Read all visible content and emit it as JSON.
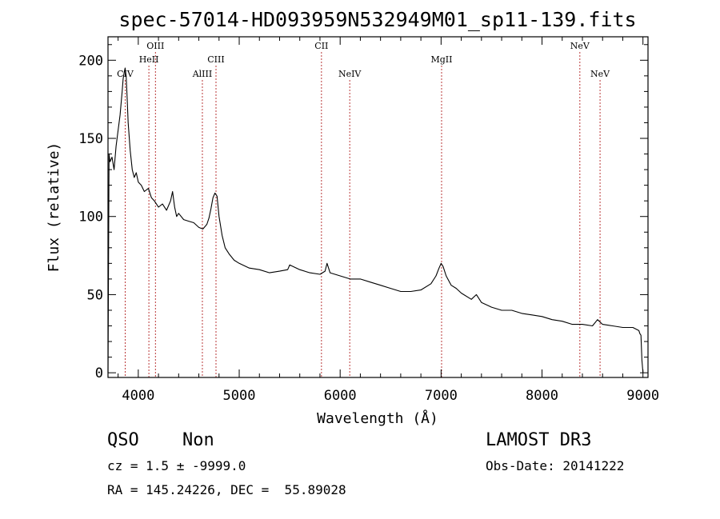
{
  "chart_data": {
    "type": "line",
    "title": "spec-57014-HD093959N532949M01_sp11-139.fits",
    "xlabel": "Wavelength (Å)",
    "ylabel": "Flux (relative)",
    "xlim": [
      3700,
      9050
    ],
    "ylim": [
      -3,
      215
    ],
    "xticks": [
      4000,
      5000,
      6000,
      7000,
      8000,
      9000
    ],
    "yticks": [
      0,
      50,
      100,
      150,
      200
    ],
    "grid": false,
    "line_color": "#000000",
    "marker_color": "#b22222",
    "spectral_lines": [
      {
        "name": "CIV",
        "wavelength": 3870,
        "row": "low"
      },
      {
        "name": "HeII",
        "wavelength": 4105,
        "row": "mid"
      },
      {
        "name": "OIII",
        "wavelength": 4170,
        "row": "high"
      },
      {
        "name": "AlIII",
        "wavelength": 4635,
        "row": "low"
      },
      {
        "name": "CIII",
        "wavelength": 4770,
        "row": "mid"
      },
      {
        "name": "CII",
        "wavelength": 5815,
        "row": "high"
      },
      {
        "name": "NeIV",
        "wavelength": 6095,
        "row": "low"
      },
      {
        "name": "MgII",
        "wavelength": 7005,
        "row": "mid"
      },
      {
        "name": "NeV",
        "wavelength": 8375,
        "row": "high"
      },
      {
        "name": "NeV",
        "wavelength": 8575,
        "row": "low"
      }
    ],
    "series": [
      {
        "x": [
          3700,
          3710,
          3720,
          3740,
          3760,
          3780,
          3800,
          3820,
          3840,
          3850,
          3860,
          3870,
          3880,
          3890,
          3900,
          3920,
          3940,
          3960,
          3980,
          4000,
          4030,
          4060,
          4100,
          4130,
          4160,
          4200,
          4240,
          4280,
          4320,
          4340,
          4360,
          4380,
          4400,
          4450,
          4500,
          4550,
          4600,
          4640,
          4680,
          4700,
          4720,
          4740,
          4760,
          4780,
          4800,
          4830,
          4860,
          4900,
          4950,
          5000,
          5100,
          5200,
          5300,
          5400,
          5480,
          5500,
          5600,
          5700,
          5800,
          5850,
          5870,
          5900,
          6000,
          6100,
          6200,
          6300,
          6400,
          6500,
          6600,
          6700,
          6800,
          6900,
          6950,
          6980,
          7000,
          7020,
          7050,
          7100,
          7150,
          7200,
          7300,
          7350,
          7400,
          7500,
          7600,
          7700,
          7800,
          7900,
          8000,
          8100,
          8200,
          8300,
          8400,
          8500,
          8550,
          8600,
          8700,
          8800,
          8900,
          8960,
          8970,
          8980,
          8990,
          9000
        ],
        "y": [
          0,
          140,
          135,
          138,
          130,
          145,
          155,
          165,
          180,
          188,
          192,
          195,
          190,
          175,
          160,
          142,
          130,
          125,
          128,
          122,
          120,
          116,
          118,
          112,
          110,
          106,
          108,
          104,
          110,
          116,
          106,
          100,
          102,
          98,
          97,
          96,
          93,
          92,
          95,
          99,
          105,
          112,
          115,
          113,
          100,
          88,
          80,
          76,
          72,
          70,
          67,
          66,
          64,
          65,
          66,
          69,
          66,
          64,
          63,
          65,
          70,
          64,
          62,
          60,
          60,
          58,
          56,
          54,
          52,
          52,
          53,
          57,
          62,
          67,
          70,
          68,
          62,
          56,
          54,
          51,
          47,
          50,
          45,
          42,
          40,
          40,
          38,
          37,
          36,
          34,
          33,
          31,
          31,
          30,
          34,
          31,
          30,
          29,
          29,
          27,
          25,
          24,
          8,
          0
        ]
      }
    ]
  },
  "footer": {
    "object_class": "QSO",
    "subclass": "Non",
    "survey": "LAMOST DR3",
    "redshift": "cz = 1.5 ± -9999.0",
    "obs_date": "Obs-Date: 20141222",
    "coords": "RA = 145.24226, DEC =  55.89028"
  }
}
